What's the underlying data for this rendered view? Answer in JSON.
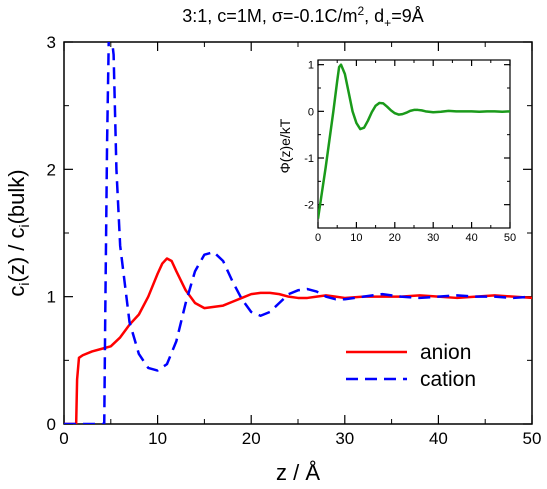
{
  "chart_data": [
    {
      "type": "line",
      "title": "3:1, c=1M, σ=-0.1C/m², d₊=9Å",
      "title_parts": {
        "main": "3:1, c=1M, σ=-0.1C/m",
        "sup": "2",
        "sep": ", d",
        "sub": "+",
        "tail": "=9Å"
      },
      "xlabel": "z / Å",
      "ylabel": "c_i(z) / c_i(bulk)",
      "ylabel_parts": {
        "a": "c",
        "a_sub": "i",
        "b": "(z) / c",
        "b_sub": "i",
        "c": "(bulk)"
      },
      "xlim": [
        0,
        50
      ],
      "ylim": [
        0,
        3
      ],
      "x_ticks": [
        0,
        10,
        20,
        30,
        40,
        50
      ],
      "y_ticks": [
        0,
        1,
        2,
        3
      ],
      "grid": false,
      "legend_position": "lower-right",
      "series": [
        {
          "name": "anion",
          "color": "#ff0000",
          "dash": "solid",
          "x": [
            0,
            1.3,
            1.4,
            1.6,
            2,
            3,
            4,
            5,
            6,
            7,
            8,
            9,
            10,
            10.5,
            11,
            11.5,
            12,
            13,
            14,
            15,
            16,
            17,
            18,
            19,
            20,
            21,
            22,
            23,
            24,
            25,
            26,
            27,
            28,
            29,
            30,
            32,
            34,
            36,
            38,
            40,
            42,
            44,
            46,
            48,
            50
          ],
          "y": [
            0,
            0,
            0.35,
            0.52,
            0.54,
            0.57,
            0.59,
            0.61,
            0.68,
            0.78,
            0.86,
            1.0,
            1.18,
            1.26,
            1.3,
            1.28,
            1.2,
            1.05,
            0.95,
            0.91,
            0.92,
            0.93,
            0.96,
            0.99,
            1.02,
            1.03,
            1.03,
            1.02,
            1.0,
            0.99,
            0.99,
            1.0,
            1.01,
            1.0,
            0.99,
            1.0,
            1.0,
            1.0,
            1.01,
            1.0,
            0.99,
            1.0,
            1.01,
            1.0,
            0.99
          ]
        },
        {
          "name": "cation",
          "color": "#0000ff",
          "dash": "dashed",
          "x": [
            0,
            4.3,
            4.4,
            4.6,
            4.8,
            5.0,
            5.3,
            5.6,
            6,
            7,
            8,
            9,
            10,
            11,
            12,
            13,
            14,
            15,
            16,
            17,
            18,
            19,
            20,
            21,
            22,
            23,
            24,
            25,
            26,
            27,
            28,
            29,
            30,
            32,
            34,
            36,
            38,
            40,
            42,
            44,
            46,
            48,
            50
          ],
          "y": [
            0,
            0,
            0.8,
            2.2,
            3.1,
            3.1,
            2.9,
            2.0,
            1.4,
            0.8,
            0.55,
            0.44,
            0.42,
            0.47,
            0.65,
            0.95,
            1.2,
            1.33,
            1.35,
            1.28,
            1.12,
            0.98,
            0.88,
            0.85,
            0.88,
            0.95,
            1.02,
            1.05,
            1.06,
            1.04,
            1.0,
            0.98,
            0.98,
            1.0,
            1.02,
            1.0,
            0.99,
            1.0,
            1.01,
            1.0,
            1.0,
            0.99,
            1.0
          ]
        }
      ]
    },
    {
      "type": "line",
      "title": "",
      "xlabel": "",
      "ylabel": "Φ(z)e/kT",
      "xlim": [
        0,
        50
      ],
      "ylim": [
        -2.5,
        1.1
      ],
      "x_ticks": [
        0,
        10,
        20,
        30,
        40,
        50
      ],
      "y_ticks": [
        -2,
        -1,
        0,
        1
      ],
      "grid": false,
      "series": [
        {
          "name": "",
          "color": "#1a9a1a",
          "dash": "solid",
          "x": [
            0,
            1,
            2,
            3,
            4,
            5,
            5.5,
            6,
            7,
            8,
            9,
            10,
            11,
            12,
            13,
            14,
            15,
            16,
            17,
            18,
            19,
            20,
            21,
            22,
            23,
            24,
            25,
            26,
            27,
            28,
            30,
            32,
            34,
            36,
            38,
            40,
            42,
            44,
            46,
            48,
            50
          ],
          "y": [
            -2.3,
            -1.75,
            -1.2,
            -0.6,
            0.0,
            0.65,
            0.95,
            1.0,
            0.8,
            0.4,
            0.0,
            -0.25,
            -0.38,
            -0.35,
            -0.2,
            -0.02,
            0.12,
            0.18,
            0.17,
            0.1,
            0.02,
            -0.04,
            -0.07,
            -0.06,
            -0.03,
            0.01,
            0.03,
            0.03,
            0.02,
            0.0,
            -0.02,
            -0.01,
            0.01,
            0.0,
            0.0,
            0.0,
            -0.01,
            0.0,
            0.0,
            -0.01,
            0.0
          ]
        }
      ]
    }
  ]
}
